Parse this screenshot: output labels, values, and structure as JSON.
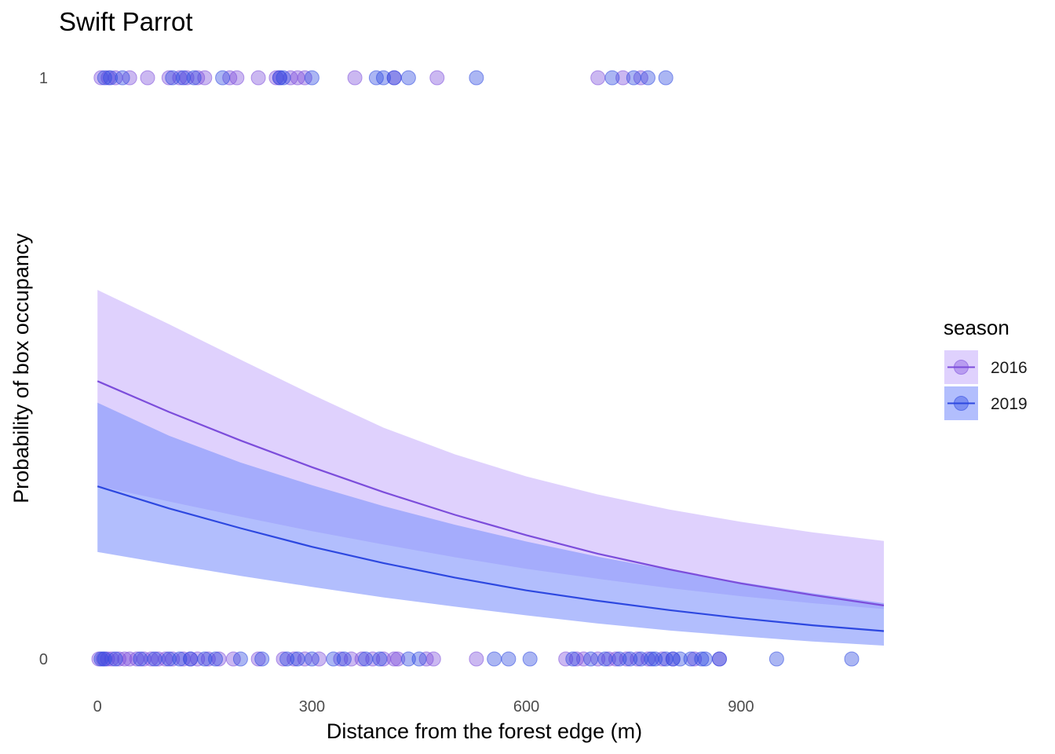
{
  "chart_data": {
    "type": "scatter",
    "title": "Swift Parrot",
    "xlabel": "Distance from the forest edge (m)",
    "ylabel": "Probability of box occupancy",
    "xlim": [
      -20,
      1100
    ],
    "ylim": [
      -0.05,
      1.05
    ],
    "x_ticks": [
      0,
      300,
      600,
      900
    ],
    "x_tick_labels": [
      "0",
      "300",
      "600",
      "900"
    ],
    "y_ticks": [
      0,
      1
    ],
    "y_tick_labels": [
      "0",
      "1"
    ],
    "grid": false,
    "legend": {
      "title": "season",
      "position": "right",
      "entries": [
        "2016",
        "2019"
      ]
    },
    "series": [
      {
        "name": "2016",
        "color": "#7c4ddb",
        "ribbon_color": "#c9b3fb",
        "fit": {
          "x": [
            0,
            100,
            200,
            300,
            400,
            500,
            600,
            700,
            800,
            900,
            1000,
            1100
          ],
          "y": [
            0.478,
            0.425,
            0.376,
            0.33,
            0.287,
            0.248,
            0.213,
            0.181,
            0.154,
            0.13,
            0.11,
            0.092
          ],
          "lower": [
            0.298,
            0.271,
            0.245,
            0.22,
            0.197,
            0.175,
            0.155,
            0.138,
            0.122,
            0.108,
            0.096,
            0.086
          ],
          "upper": [
            0.635,
            0.576,
            0.515,
            0.455,
            0.398,
            0.352,
            0.314,
            0.283,
            0.257,
            0.236,
            0.218,
            0.203
          ]
        },
        "points_present": [
          5,
          15,
          25,
          45,
          70,
          100,
          115,
          125,
          140,
          150,
          185,
          195,
          225,
          250,
          255,
          270,
          280,
          290,
          360,
          415,
          475,
          700,
          735,
          760
        ],
        "points_absent": [
          2,
          8,
          14,
          20,
          30,
          38,
          45,
          55,
          65,
          75,
          85,
          95,
          105,
          120,
          130,
          140,
          155,
          170,
          190,
          225,
          260,
          275,
          290,
          310,
          340,
          355,
          370,
          385,
          400,
          415,
          420,
          460,
          470,
          530,
          655,
          670,
          680,
          700,
          715,
          725,
          740,
          755,
          770,
          790,
          805,
          835,
          870
        ]
      },
      {
        "name": "2019",
        "color": "#2d48e0",
        "ribbon_color": "#7f93fb",
        "fit": {
          "x": [
            0,
            100,
            200,
            300,
            400,
            500,
            600,
            700,
            800,
            900,
            1000,
            1100
          ],
          "y": [
            0.297,
            0.259,
            0.225,
            0.193,
            0.165,
            0.14,
            0.118,
            0.1,
            0.084,
            0.07,
            0.058,
            0.048
          ],
          "lower": [
            0.184,
            0.163,
            0.143,
            0.124,
            0.106,
            0.09,
            0.075,
            0.061,
            0.049,
            0.039,
            0.03,
            0.023
          ],
          "upper": [
            0.441,
            0.384,
            0.338,
            0.299,
            0.263,
            0.231,
            0.202,
            0.176,
            0.153,
            0.132,
            0.113,
            0.096
          ]
        },
        "points_present": [
          10,
          18,
          35,
          105,
          120,
          135,
          175,
          255,
          260,
          300,
          390,
          400,
          415,
          435,
          530,
          720,
          750,
          770,
          795
        ],
        "points_absent": [
          5,
          10,
          25,
          60,
          80,
          100,
          115,
          130,
          150,
          165,
          200,
          230,
          265,
          280,
          300,
          330,
          345,
          375,
          395,
          435,
          450,
          555,
          575,
          605,
          665,
          690,
          710,
          730,
          745,
          760,
          775,
          780,
          795,
          805,
          815,
          830,
          845,
          850,
          870,
          950,
          1055
        ]
      }
    ]
  }
}
